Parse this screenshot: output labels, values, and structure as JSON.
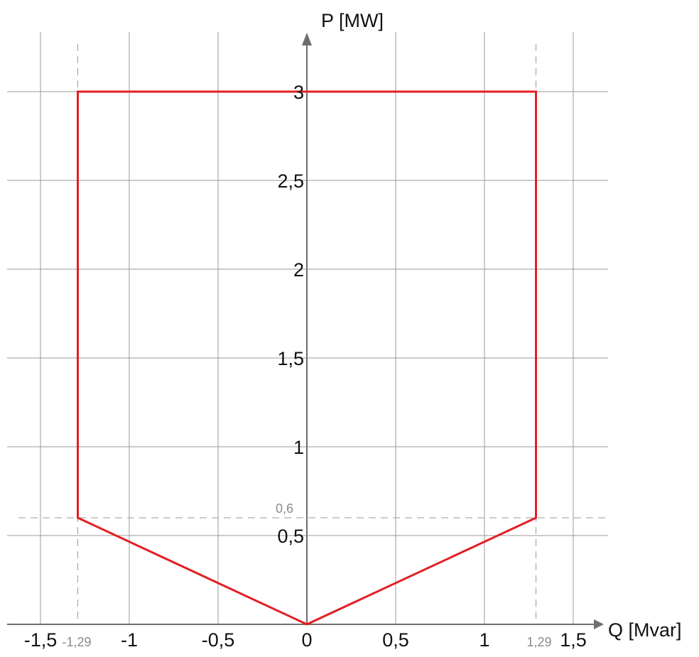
{
  "chart_data": {
    "type": "line",
    "xlabel": "Q [Mvar]",
    "ylabel": "P [MW]",
    "xlim": [
      -1.5,
      1.5
    ],
    "ylim": [
      0,
      3
    ],
    "x_ticks": [
      {
        "value": -1.5,
        "label": "-1,5"
      },
      {
        "value": -1,
        "label": "-1"
      },
      {
        "value": -0.5,
        "label": "-0,5"
      },
      {
        "value": 0,
        "label": "0"
      },
      {
        "value": 0.5,
        "label": "0,5"
      },
      {
        "value": 1,
        "label": "1"
      },
      {
        "value": 1.5,
        "label": "1,5"
      }
    ],
    "y_ticks": [
      {
        "value": 0.5,
        "label": "0,5"
      },
      {
        "value": 1,
        "label": "1"
      },
      {
        "value": 1.5,
        "label": "1,5"
      },
      {
        "value": 2,
        "label": "2"
      },
      {
        "value": 2.5,
        "label": "2,5"
      },
      {
        "value": 3,
        "label": "3"
      }
    ],
    "grid": true,
    "series": [
      {
        "color": "#e31e24",
        "closed": true,
        "points": [
          {
            "x": 0,
            "y": 0
          },
          {
            "x": 1.29,
            "y": 0.6
          },
          {
            "x": 1.29,
            "y": 3
          },
          {
            "x": -1.29,
            "y": 3
          },
          {
            "x": -1.29,
            "y": 0.6
          }
        ]
      }
    ],
    "reference_lines": [
      {
        "axis": "x",
        "value": -1.29,
        "label": "-1,29",
        "style": "dashed"
      },
      {
        "axis": "x",
        "value": 1.29,
        "label": "1,29",
        "style": "dashed"
      },
      {
        "axis": "y",
        "value": 0.6,
        "label": "0,6",
        "style": "dashed"
      }
    ],
    "colors": {
      "grid": "#9a9a9a",
      "axis": "#6e6e6e",
      "series": "#e31e24",
      "ref_label": "#8a8a8a",
      "text": "#111111"
    }
  }
}
